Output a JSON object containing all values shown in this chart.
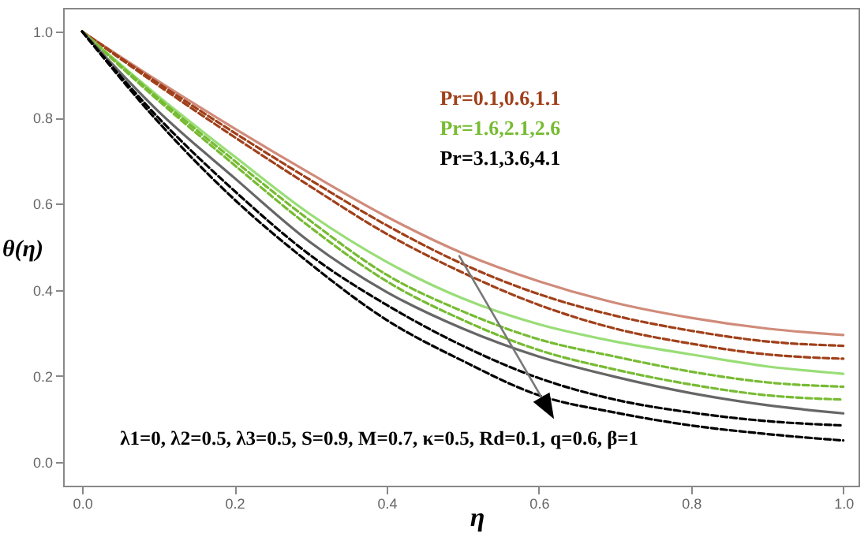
{
  "chart_data": {
    "type": "line",
    "xlabel": "η",
    "ylabel": "θ(η)",
    "x": [
      0,
      0.1,
      0.2,
      0.3,
      0.4,
      0.5,
      0.6,
      0.7,
      0.8,
      0.9,
      1.0
    ],
    "series": [
      {
        "color": "#d08b7a",
        "line_style": "solid",
        "values": [
          1,
          0.885,
          0.775,
          0.67,
          0.57,
          0.485,
          0.42,
          0.37,
          0.335,
          0.31,
          0.295
        ]
      },
      {
        "color": "#a0401a",
        "line_style": "dashed",
        "values": [
          1,
          0.88,
          0.765,
          0.655,
          0.55,
          0.46,
          0.39,
          0.34,
          0.305,
          0.28,
          0.27
        ]
      },
      {
        "color": "#a0401a",
        "line_style": "dashed",
        "values": [
          1,
          0.875,
          0.755,
          0.64,
          0.53,
          0.44,
          0.365,
          0.31,
          0.275,
          0.25,
          0.24
        ]
      },
      {
        "color": "#99dd77",
        "line_style": "solid",
        "values": [
          1,
          0.85,
          0.71,
          0.575,
          0.465,
          0.38,
          0.32,
          0.28,
          0.25,
          0.222,
          0.205
        ]
      },
      {
        "color": "#77bb33",
        "line_style": "dashed",
        "values": [
          1,
          0.845,
          0.7,
          0.56,
          0.435,
          0.35,
          0.285,
          0.245,
          0.21,
          0.185,
          0.175
        ]
      },
      {
        "color": "#77bb33",
        "line_style": "dashed",
        "values": [
          1,
          0.84,
          0.69,
          0.545,
          0.42,
          0.33,
          0.26,
          0.215,
          0.18,
          0.155,
          0.145
        ]
      },
      {
        "color": "#666666",
        "line_style": "solid",
        "values": [
          1,
          0.815,
          0.66,
          0.51,
          0.395,
          0.31,
          0.245,
          0.198,
          0.16,
          0.132,
          0.113
        ]
      },
      {
        "color": "#000000",
        "line_style": "dashed",
        "values": [
          1,
          0.8,
          0.63,
          0.48,
          0.365,
          0.27,
          0.195,
          0.145,
          0.115,
          0.095,
          0.085
        ]
      },
      {
        "color": "#000000",
        "line_style": "dashed",
        "values": [
          1,
          0.79,
          0.61,
          0.46,
          0.33,
          0.235,
          0.155,
          0.115,
          0.085,
          0.065,
          0.05
        ]
      }
    ],
    "xlim": [
      -0.025,
      1.02
    ],
    "ylim": [
      -0.055,
      1.055
    ],
    "xticks": [
      {
        "value": 0,
        "label": "0.0"
      },
      0.2,
      0.4,
      0.6,
      0.8,
      {
        "value": 1,
        "label": "1.0"
      }
    ],
    "yticks": [
      {
        "value": 0,
        "label": "0.0"
      },
      0.2,
      0.4,
      0.6,
      0.8,
      {
        "value": 1,
        "label": "1.0"
      }
    ],
    "grid": false,
    "marker": "none",
    "annotations": [
      "Pr=0.1,0.6,1.1",
      "Pr=1.6,2.1,2.6",
      "Pr=3.1,3.6,4.1",
      "λ1=0, λ2=0.5, λ3=0.5, S=0.9, M=0.7, κ=0.5, Rd=0.1, q=0.6, β=1"
    ]
  }
}
